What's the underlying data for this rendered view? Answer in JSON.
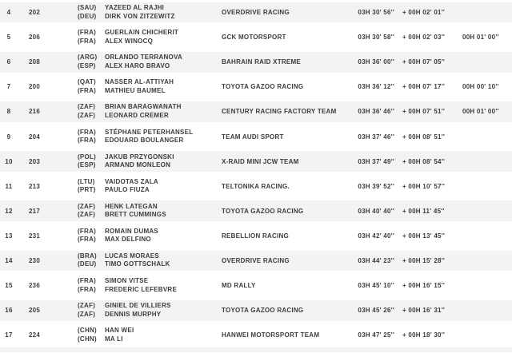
{
  "colors": {
    "row_alt_background": "#f3f3f3",
    "row_background": "#ffffff",
    "badge_yellow": "#dfa602",
    "badge_blue": "#3a9bc8",
    "text": "#3c3c3c"
  },
  "table": {
    "rows": [
      {
        "pos": "4",
        "num": "202",
        "badge": "",
        "crew": [
          {
            "code": "(SAU)",
            "name": "YAZEED AL RAJHI"
          },
          {
            "code": "(DEU)",
            "name": "DIRK VON ZITZEWITZ"
          }
        ],
        "team": "OVERDRIVE RACING",
        "time": "03H 30' 56''",
        "gap": "+ 00H 02' 01''",
        "penalty": ""
      },
      {
        "pos": "5",
        "num": "206",
        "badge": "yellow",
        "crew": [
          {
            "code": "(FRA)",
            "name": "GUERLAIN CHICHERIT"
          },
          {
            "code": "(FRA)",
            "name": "ALEX WINOCQ"
          }
        ],
        "team": "GCK MOTORSPORT",
        "time": "03H 30' 58''",
        "gap": "+ 00H 02' 03''",
        "penalty": "00H 01' 00''"
      },
      {
        "pos": "6",
        "num": "208",
        "badge": "yellow",
        "crew": [
          {
            "code": "(ARG)",
            "name": "ORLANDO TERRANOVA"
          },
          {
            "code": "(ESP)",
            "name": "ALEX HARO BRAVO"
          }
        ],
        "team": "BAHRAIN RAID XTREME",
        "time": "03H 36' 00''",
        "gap": "+ 00H 07' 05''",
        "penalty": ""
      },
      {
        "pos": "7",
        "num": "200",
        "badge": "yellow",
        "crew": [
          {
            "code": "(QAT)",
            "name": "NASSER AL-ATTIYAH"
          },
          {
            "code": "(FRA)",
            "name": "MATHIEU BAUMEL"
          }
        ],
        "team": "TOYOTA GAZOO RACING",
        "time": "03H 36' 12''",
        "gap": "+ 00H 07' 17''",
        "penalty": "00H 00' 10''"
      },
      {
        "pos": "8",
        "num": "216",
        "badge": "",
        "crew": [
          {
            "code": "(ZAF)",
            "name": "BRIAN BARAGWANATH"
          },
          {
            "code": "(ZAF)",
            "name": "LEONARD CREMER"
          }
        ],
        "team": "CENTURY RACING FACTORY TEAM",
        "time": "03H 36' 46''",
        "gap": "+ 00H 07' 51''",
        "penalty": "00H 01' 00''"
      },
      {
        "pos": "9",
        "num": "204",
        "badge": "yellow",
        "crew": [
          {
            "code": "(FRA)",
            "name": "STÉPHANE PETERHANSEL"
          },
          {
            "code": "(FRA)",
            "name": "EDOUARD BOULANGER"
          }
        ],
        "team": "TEAM AUDI SPORT",
        "time": "03H 37' 46''",
        "gap": "+ 00H 08' 51''",
        "penalty": ""
      },
      {
        "pos": "10",
        "num": "203",
        "badge": "yellow",
        "crew": [
          {
            "code": "(POL)",
            "name": "JAKUB PRZYGONSKI"
          },
          {
            "code": "(ESP)",
            "name": "ARMAND MONLEON"
          }
        ],
        "team": "X-RAID MINI JCW TEAM",
        "time": "03H 37' 49''",
        "gap": "+ 00H 08' 54''",
        "penalty": ""
      },
      {
        "pos": "11",
        "num": "213",
        "badge": "",
        "crew": [
          {
            "code": "(LTU)",
            "name": "VAIDOTAS ZALA"
          },
          {
            "code": "(PRT)",
            "name": "PAULO FIUZA"
          }
        ],
        "team": "TELTONIKA RACING.",
        "time": "03H 39' 52''",
        "gap": "+ 00H 10' 57''",
        "penalty": ""
      },
      {
        "pos": "12",
        "num": "217",
        "badge": "",
        "crew": [
          {
            "code": "(ZAF)",
            "name": "HENK LATEGAN"
          },
          {
            "code": "(ZAF)",
            "name": "BRETT CUMMINGS"
          }
        ],
        "team": "TOYOTA GAZOO RACING",
        "time": "03H 40' 40''",
        "gap": "+ 00H 11' 45''",
        "penalty": ""
      },
      {
        "pos": "13",
        "num": "231",
        "badge": "",
        "crew": [
          {
            "code": "(FRA)",
            "name": "ROMAIN DUMAS"
          },
          {
            "code": "(FRA)",
            "name": "MAX DELFINO"
          }
        ],
        "team": "REBELLION RACING",
        "time": "03H 42' 40''",
        "gap": "+ 00H 13' 45''",
        "penalty": ""
      },
      {
        "pos": "14",
        "num": "230",
        "badge": "blue",
        "crew": [
          {
            "code": "(BRA)",
            "name": "LUCAS MORAES"
          },
          {
            "code": "(DEU)",
            "name": "TIMO GOTTSCHALK"
          }
        ],
        "team": "OVERDRIVE RACING",
        "time": "03H 44' 23''",
        "gap": "+ 00H 15' 28''",
        "penalty": ""
      },
      {
        "pos": "15",
        "num": "236",
        "badge": "blue",
        "crew": [
          {
            "code": "(FRA)",
            "name": "SIMON VITSE"
          },
          {
            "code": "(FRA)",
            "name": "FREDERIC LEFEBVRE"
          }
        ],
        "team": "MD RALLY",
        "time": "03H 45' 10''",
        "gap": "+ 00H 16' 15''",
        "penalty": ""
      },
      {
        "pos": "16",
        "num": "205",
        "badge": "yellow",
        "crew": [
          {
            "code": "(ZAF)",
            "name": "GINIEL DE VILLIERS"
          },
          {
            "code": "(ZAF)",
            "name": "DENNIS MURPHY"
          }
        ],
        "team": "TOYOTA GAZOO RACING",
        "time": "03H 45' 26''",
        "gap": "+ 00H 16' 31''",
        "penalty": ""
      },
      {
        "pos": "17",
        "num": "224",
        "badge": "",
        "crew": [
          {
            "code": "(CHN)",
            "name": "HAN WEI"
          },
          {
            "code": "(CHN)",
            "name": "MA LI"
          }
        ],
        "team": "HANWEI MOTORSPORT TEAM",
        "time": "03H 47' 25''",
        "gap": "+ 00H 18' 30''",
        "penalty": ""
      }
    ]
  }
}
